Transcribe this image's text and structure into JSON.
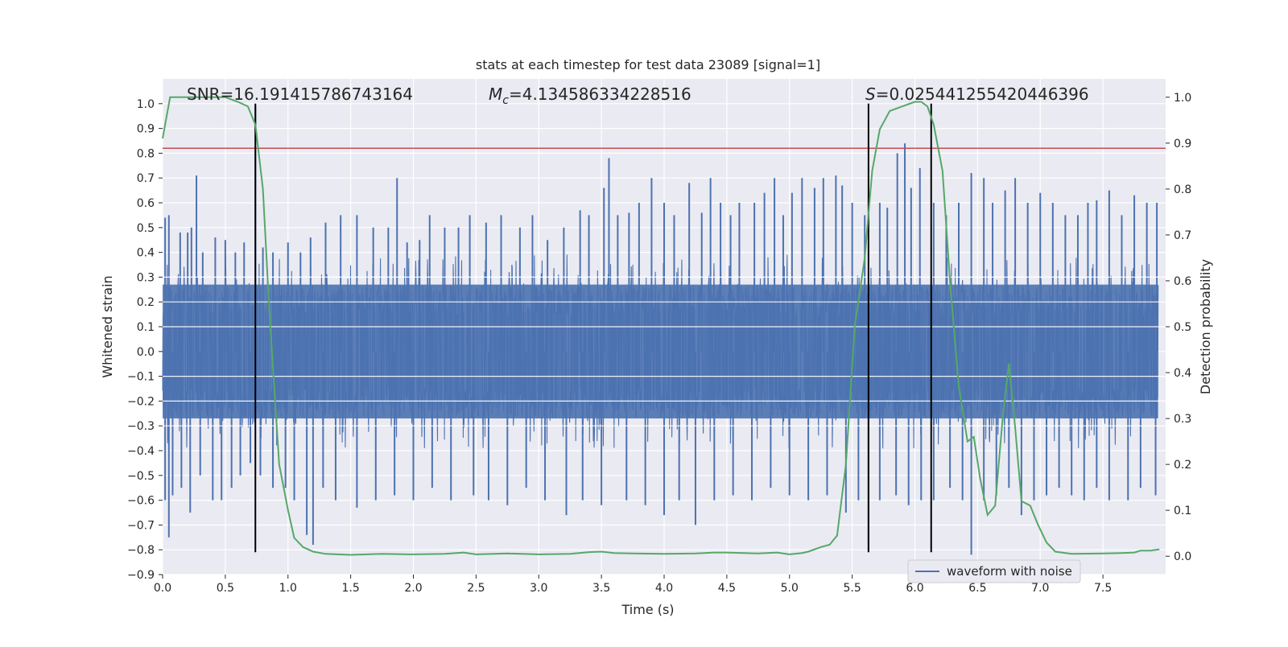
{
  "chart_data": {
    "type": "line",
    "title": "stats at each timestep for test data 23089 [signal=1]",
    "xlabel": "Time (s)",
    "ylabel": "Whitened strain",
    "ylabel_right": "Detection probability",
    "xlim": [
      0.0,
      8.0
    ],
    "ylim": [
      -0.9,
      1.1
    ],
    "ylim_right": [
      -0.04,
      1.04
    ],
    "x_ticks": [
      "0.0",
      "0.5",
      "1.0",
      "1.5",
      "2.0",
      "2.5",
      "3.0",
      "3.5",
      "4.0",
      "4.5",
      "5.0",
      "5.5",
      "6.0",
      "6.5",
      "7.0",
      "7.5"
    ],
    "y_ticks": [
      "1.0",
      "0.9",
      "0.8",
      "0.7",
      "0.6",
      "0.5",
      "0.4",
      "0.3",
      "0.2",
      "0.1",
      "0.0",
      "−0.1",
      "−0.2",
      "−0.3",
      "−0.4",
      "−0.5",
      "−0.6",
      "−0.7",
      "−0.8",
      "−0.9"
    ],
    "y_ticks_right": [
      "1.0",
      "0.9",
      "0.8",
      "0.7",
      "0.6",
      "0.5",
      "0.4",
      "0.3",
      "0.2",
      "0.1",
      "0.0"
    ],
    "grid": true,
    "legend_position": "bottom-right",
    "annotations": {
      "snr": "SNR=16.191415786743164",
      "mc": "=4.134586334228516",
      "mc_symbol": "M",
      "mc_subscript": "c",
      "s": "=0.025441255420446396",
      "s_symbol": "S"
    },
    "series": [
      {
        "name": "waveform with noise",
        "axis": "left",
        "color": "#4c72b0",
        "envelope": {
          "core_amplitude": 0.27,
          "spikes_up": [
            [
              0.02,
              0.54
            ],
            [
              0.05,
              0.55
            ],
            [
              0.14,
              0.48
            ],
            [
              0.2,
              0.48
            ],
            [
              0.23,
              0.5
            ],
            [
              0.27,
              0.71
            ],
            [
              0.32,
              0.4
            ],
            [
              0.42,
              0.46
            ],
            [
              0.5,
              0.45
            ],
            [
              0.58,
              0.4
            ],
            [
              0.65,
              0.44
            ],
            [
              0.74,
              0.99
            ],
            [
              0.8,
              0.42
            ],
            [
              0.88,
              0.4
            ],
            [
              1.0,
              0.44
            ],
            [
              1.1,
              0.4
            ],
            [
              1.18,
              0.46
            ],
            [
              1.3,
              0.52
            ],
            [
              1.42,
              0.55
            ],
            [
              1.55,
              0.55
            ],
            [
              1.68,
              0.5
            ],
            [
              1.8,
              0.5
            ],
            [
              1.87,
              0.7
            ],
            [
              1.95,
              0.44
            ],
            [
              2.05,
              0.45
            ],
            [
              2.13,
              0.55
            ],
            [
              2.25,
              0.5
            ],
            [
              2.36,
              0.5
            ],
            [
              2.45,
              0.55
            ],
            [
              2.58,
              0.52
            ],
            [
              2.7,
              0.55
            ],
            [
              2.85,
              0.5
            ],
            [
              2.95,
              0.55
            ],
            [
              3.07,
              0.45
            ],
            [
              3.2,
              0.5
            ],
            [
              3.33,
              0.57
            ],
            [
              3.4,
              0.55
            ],
            [
              3.52,
              0.66
            ],
            [
              3.56,
              0.78
            ],
            [
              3.63,
              0.55
            ],
            [
              3.72,
              0.56
            ],
            [
              3.8,
              0.6
            ],
            [
              3.9,
              0.7
            ],
            [
              4.0,
              0.6
            ],
            [
              4.08,
              0.55
            ],
            [
              4.2,
              0.68
            ],
            [
              4.3,
              0.56
            ],
            [
              4.37,
              0.7
            ],
            [
              4.45,
              0.6
            ],
            [
              4.53,
              0.55
            ],
            [
              4.6,
              0.6
            ],
            [
              4.72,
              0.6
            ],
            [
              4.8,
              0.64
            ],
            [
              4.88,
              0.7
            ],
            [
              4.95,
              0.55
            ],
            [
              5.02,
              0.64
            ],
            [
              5.1,
              0.7
            ],
            [
              5.2,
              0.66
            ],
            [
              5.27,
              0.7
            ],
            [
              5.37,
              0.71
            ],
            [
              5.42,
              0.67
            ],
            [
              5.5,
              0.6
            ],
            [
              5.6,
              0.55
            ],
            [
              5.72,
              0.6
            ],
            [
              5.78,
              0.58
            ],
            [
              5.86,
              0.8
            ],
            [
              5.92,
              0.84
            ],
            [
              5.97,
              0.66
            ],
            [
              6.04,
              0.74
            ],
            [
              6.15,
              0.6
            ],
            [
              6.25,
              0.55
            ],
            [
              6.35,
              0.6
            ],
            [
              6.45,
              0.72
            ],
            [
              6.55,
              0.7
            ],
            [
              6.62,
              0.6
            ],
            [
              6.72,
              0.65
            ],
            [
              6.8,
              0.7
            ],
            [
              6.9,
              0.6
            ],
            [
              7.0,
              0.64
            ],
            [
              7.1,
              0.6
            ],
            [
              7.2,
              0.55
            ],
            [
              7.3,
              0.55
            ],
            [
              7.38,
              0.6
            ],
            [
              7.45,
              0.61
            ],
            [
              7.55,
              0.65
            ],
            [
              7.65,
              0.55
            ],
            [
              7.75,
              0.63
            ],
            [
              7.85,
              0.6
            ],
            [
              7.93,
              0.6
            ]
          ],
          "spikes_down": [
            [
              0.02,
              -0.6
            ],
            [
              0.05,
              -0.75
            ],
            [
              0.08,
              -0.58
            ],
            [
              0.15,
              -0.55
            ],
            [
              0.22,
              -0.65
            ],
            [
              0.3,
              -0.5
            ],
            [
              0.4,
              -0.6
            ],
            [
              0.47,
              -0.6
            ],
            [
              0.55,
              -0.55
            ],
            [
              0.62,
              -0.5
            ],
            [
              0.7,
              -0.45
            ],
            [
              0.78,
              -0.5
            ],
            [
              0.88,
              -0.55
            ],
            [
              0.98,
              -0.55
            ],
            [
              1.05,
              -0.6
            ],
            [
              1.15,
              -0.74
            ],
            [
              1.2,
              -0.78
            ],
            [
              1.28,
              -0.55
            ],
            [
              1.38,
              -0.6
            ],
            [
              1.55,
              -0.63
            ],
            [
              1.7,
              -0.6
            ],
            [
              1.85,
              -0.58
            ],
            [
              2.0,
              -0.6
            ],
            [
              2.15,
              -0.55
            ],
            [
              2.3,
              -0.6
            ],
            [
              2.48,
              -0.58
            ],
            [
              2.6,
              -0.6
            ],
            [
              2.75,
              -0.62
            ],
            [
              2.9,
              -0.55
            ],
            [
              3.05,
              -0.6
            ],
            [
              3.22,
              -0.66
            ],
            [
              3.35,
              -0.6
            ],
            [
              3.5,
              -0.62
            ],
            [
              3.7,
              -0.6
            ],
            [
              3.85,
              -0.62
            ],
            [
              4.0,
              -0.66
            ],
            [
              4.12,
              -0.6
            ],
            [
              4.25,
              -0.7
            ],
            [
              4.4,
              -0.6
            ],
            [
              4.55,
              -0.58
            ],
            [
              4.7,
              -0.6
            ],
            [
              4.85,
              -0.55
            ],
            [
              5.0,
              -0.58
            ],
            [
              5.15,
              -0.6
            ],
            [
              5.3,
              -0.58
            ],
            [
              5.45,
              -0.65
            ],
            [
              5.55,
              -0.6
            ],
            [
              5.63,
              -0.8
            ],
            [
              5.72,
              -0.6
            ],
            [
              5.85,
              -0.58
            ],
            [
              5.95,
              -0.62
            ],
            [
              6.05,
              -0.6
            ],
            [
              6.15,
              -0.6
            ],
            [
              6.28,
              -0.55
            ],
            [
              6.38,
              -0.6
            ],
            [
              6.45,
              -0.82
            ],
            [
              6.55,
              -0.6
            ],
            [
              6.65,
              -0.58
            ],
            [
              6.75,
              -0.55
            ],
            [
              6.85,
              -0.66
            ],
            [
              6.95,
              -0.6
            ],
            [
              7.05,
              -0.58
            ],
            [
              7.15,
              -0.55
            ],
            [
              7.25,
              -0.58
            ],
            [
              7.35,
              -0.6
            ],
            [
              7.45,
              -0.55
            ],
            [
              7.55,
              -0.6
            ],
            [
              7.7,
              -0.6
            ],
            [
              7.8,
              -0.55
            ],
            [
              7.92,
              -0.58
            ]
          ]
        }
      },
      {
        "name": "",
        "axis": "right",
        "color": "#55a868",
        "x": [
          0.0,
          0.06,
          0.12,
          0.25,
          0.5,
          0.6,
          0.68,
          0.74,
          0.8,
          0.85,
          0.93,
          1.0,
          1.05,
          1.12,
          1.2,
          1.3,
          1.5,
          1.75,
          2.0,
          2.25,
          2.4,
          2.5,
          2.75,
          3.0,
          3.25,
          3.4,
          3.5,
          3.6,
          3.75,
          4.0,
          4.25,
          4.4,
          4.5,
          4.75,
          4.9,
          5.0,
          5.1,
          5.15,
          5.25,
          5.32,
          5.38,
          5.45,
          5.52,
          5.6,
          5.66,
          5.72,
          5.8,
          5.9,
          6.0,
          6.05,
          6.1,
          6.15,
          6.22,
          6.28,
          6.35,
          6.42,
          6.47,
          6.52,
          6.58,
          6.64,
          6.7,
          6.75,
          6.8,
          6.85,
          6.92,
          6.98,
          7.05,
          7.12,
          7.25,
          7.5,
          7.65,
          7.75,
          7.8,
          7.88,
          7.95
        ],
        "y": [
          0.91,
          1.0,
          1.0,
          1.0,
          1.0,
          0.99,
          0.98,
          0.94,
          0.8,
          0.54,
          0.2,
          0.1,
          0.04,
          0.02,
          0.01,
          0.005,
          0.003,
          0.005,
          0.004,
          0.005,
          0.008,
          0.004,
          0.006,
          0.004,
          0.005,
          0.009,
          0.01,
          0.007,
          0.006,
          0.005,
          0.006,
          0.008,
          0.008,
          0.006,
          0.008,
          0.004,
          0.007,
          0.01,
          0.02,
          0.025,
          0.045,
          0.2,
          0.5,
          0.65,
          0.84,
          0.93,
          0.97,
          0.98,
          0.99,
          0.99,
          0.98,
          0.94,
          0.84,
          0.6,
          0.37,
          0.25,
          0.26,
          0.17,
          0.09,
          0.11,
          0.3,
          0.42,
          0.28,
          0.12,
          0.11,
          0.07,
          0.03,
          0.01,
          0.005,
          0.006,
          0.007,
          0.008,
          0.012,
          0.012,
          0.015
        ]
      }
    ],
    "hlines": [
      {
        "y": 0.82,
        "axis": "left",
        "color": "#c44e52"
      }
    ],
    "vlines": [
      0.74,
      5.63,
      6.13
    ],
    "vline_extent": [
      -0.81,
      1.0
    ]
  }
}
